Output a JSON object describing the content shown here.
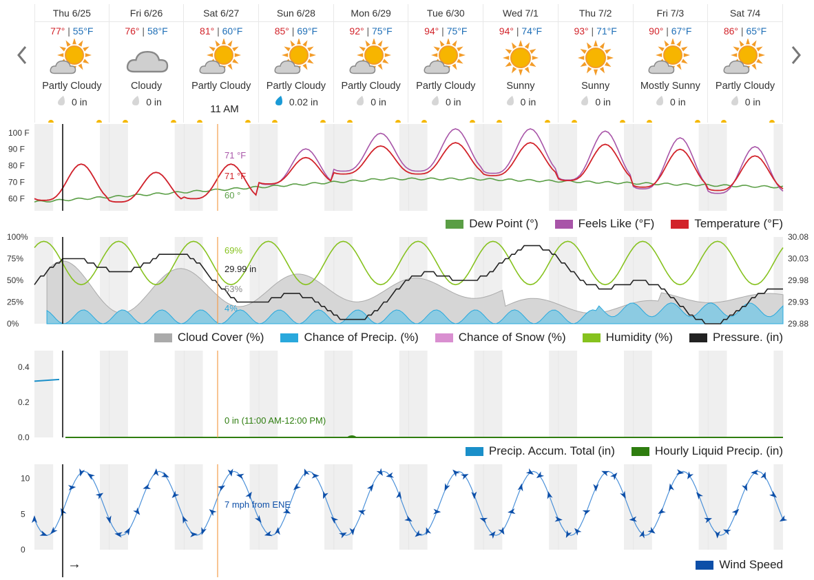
{
  "days": [
    {
      "day": "Thu 6/25",
      "hi": "77°",
      "lo": "55°F",
      "cond": "Partly Cloudy",
      "icon": "partly-cloudy-icon",
      "precip": "0 in",
      "drop": "dry"
    },
    {
      "day": "Fri 6/26",
      "hi": "76°",
      "lo": "58°F",
      "cond": "Cloudy",
      "icon": "cloudy-icon",
      "precip": "0 in",
      "drop": "dry"
    },
    {
      "day": "Sat 6/27",
      "hi": "81°",
      "lo": "60°F",
      "cond": "Partly Cloudy",
      "icon": "partly-cloudy-icon",
      "precip": "",
      "drop": "none"
    },
    {
      "day": "Sun 6/28",
      "hi": "85°",
      "lo": "69°F",
      "cond": "Partly Cloudy",
      "icon": "partly-cloudy-icon",
      "precip": "0.02 in",
      "drop": "wet"
    },
    {
      "day": "Mon 6/29",
      "hi": "92°",
      "lo": "75°F",
      "cond": "Partly Cloudy",
      "icon": "partly-cloudy-icon",
      "precip": "0 in",
      "drop": "dry"
    },
    {
      "day": "Tue 6/30",
      "hi": "94°",
      "lo": "75°F",
      "cond": "Partly Cloudy",
      "icon": "partly-cloudy-icon",
      "precip": "0 in",
      "drop": "dry"
    },
    {
      "day": "Wed 7/1",
      "hi": "94°",
      "lo": "74°F",
      "cond": "Sunny",
      "icon": "sunny-icon",
      "precip": "0 in",
      "drop": "dry"
    },
    {
      "day": "Thu 7/2",
      "hi": "93°",
      "lo": "71°F",
      "cond": "Sunny",
      "icon": "sunny-icon",
      "precip": "0 in",
      "drop": "dry"
    },
    {
      "day": "Fri 7/3",
      "hi": "90°",
      "lo": "67°F",
      "cond": "Mostly Sunny",
      "icon": "partly-cloudy-icon",
      "precip": "0 in",
      "drop": "dry"
    },
    {
      "day": "Sat 7/4",
      "hi": "86°",
      "lo": "65°F",
      "cond": "Partly Cloudy",
      "icon": "partly-cloudy-icon",
      "precip": "0 in",
      "drop": "dry"
    }
  ],
  "sep": "|",
  "hover_time": "11 AM",
  "now_arrow": "→",
  "temp_chart": {
    "yticks": [
      "100 F",
      "90 F",
      "80 F",
      "70 F",
      "60 F"
    ],
    "tooltips": {
      "feels": "71 °F",
      "temp": "71 °F",
      "dew": "60 °"
    },
    "legend": [
      {
        "label": "Dew Point (°)",
        "color": "#5a9e45"
      },
      {
        "label": "Feels Like (°F)",
        "color": "#a855a8"
      },
      {
        "label": "Temperature (°F)",
        "color": "#d2232a"
      }
    ]
  },
  "humid_chart": {
    "yticks_left": [
      "100%",
      "75%",
      "50%",
      "25%",
      "0%"
    ],
    "yticks_right": [
      "30.08",
      "30.03",
      "29.98",
      "29.93",
      "29.88"
    ],
    "tooltips": {
      "humidity": "69%",
      "pressure": "29.99 in",
      "cloud": "53%",
      "precip": "4%"
    },
    "legend": [
      {
        "label": "Cloud Cover (%)",
        "color": "#aaaaaa"
      },
      {
        "label": "Chance of Precip. (%)",
        "color": "#29a8dc"
      },
      {
        "label": "Chance of Snow (%)",
        "color": "#d98fd0"
      },
      {
        "label": "Humidity (%)",
        "color": "#86c21e"
      },
      {
        "label": "Pressure. (in)",
        "color": "#222222"
      }
    ]
  },
  "precip_chart": {
    "yticks": [
      "0.4",
      "0.2",
      "0.0"
    ],
    "tooltip": "0 in (11:00 AM-12:00 PM)",
    "legend": [
      {
        "label": "Precip. Accum. Total (in)",
        "color": "#1a8fc9"
      },
      {
        "label": "Hourly Liquid Precip. (in)",
        "color": "#2e7d0f"
      }
    ]
  },
  "wind_chart": {
    "yticks": [
      "10",
      "5",
      "0"
    ],
    "tooltip": "7 mph from ENE",
    "legend": [
      {
        "label": "Wind Speed",
        "color": "#0d4fa8"
      }
    ]
  },
  "chart_data": [
    {
      "type": "line",
      "title": "",
      "ylabel": "",
      "ylim": [
        55,
        102
      ],
      "series": [
        {
          "name": "Temperature (°F)"
        },
        {
          "name": "Feels Like (°F)"
        },
        {
          "name": "Dew Point (°)"
        }
      ]
    },
    {
      "type": "area",
      "ylim": [
        0,
        100
      ],
      "series": [
        {
          "name": "Cloud Cover (%)"
        },
        {
          "name": "Chance of Precip. (%)"
        },
        {
          "name": "Humidity (%)"
        },
        {
          "name": "Pressure. (in)"
        }
      ]
    },
    {
      "type": "line",
      "ylim": [
        0,
        0.5
      ],
      "series": [
        {
          "name": "Precip. Accum. Total (in)"
        },
        {
          "name": "Hourly Liquid Precip. (in)"
        }
      ]
    },
    {
      "type": "line",
      "ylim": [
        0,
        13
      ],
      "series": [
        {
          "name": "Wind Speed"
        }
      ]
    }
  ]
}
